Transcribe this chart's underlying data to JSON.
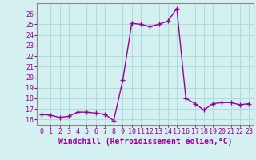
{
  "x": [
    0,
    1,
    2,
    3,
    4,
    5,
    6,
    7,
    8,
    9,
    10,
    11,
    12,
    13,
    14,
    15,
    16,
    17,
    18,
    19,
    20,
    21,
    22,
    23
  ],
  "y": [
    16.5,
    16.4,
    16.2,
    16.3,
    16.7,
    16.7,
    16.6,
    16.5,
    15.9,
    19.7,
    25.1,
    25.0,
    24.8,
    25.0,
    25.3,
    26.5,
    18.0,
    17.5,
    16.9,
    17.5,
    17.6,
    17.6,
    17.4,
    17.5
  ],
  "line_color": "#990099",
  "marker": "+",
  "marker_size": 4,
  "linewidth": 1.0,
  "xlabel": "Windchill (Refroidissement éolien,°C)",
  "xlim": [
    -0.5,
    23.5
  ],
  "ylim": [
    15.5,
    27.0
  ],
  "yticks": [
    16,
    17,
    18,
    19,
    20,
    21,
    22,
    23,
    24,
    25,
    26
  ],
  "xticks": [
    0,
    1,
    2,
    3,
    4,
    5,
    6,
    7,
    8,
    9,
    10,
    11,
    12,
    13,
    14,
    15,
    16,
    17,
    18,
    19,
    20,
    21,
    22,
    23
  ],
  "bg_color": "#d5f0f0",
  "grid_color": "#aadddd",
  "tick_label_fontsize": 6.0,
  "xlabel_fontsize": 7.0
}
